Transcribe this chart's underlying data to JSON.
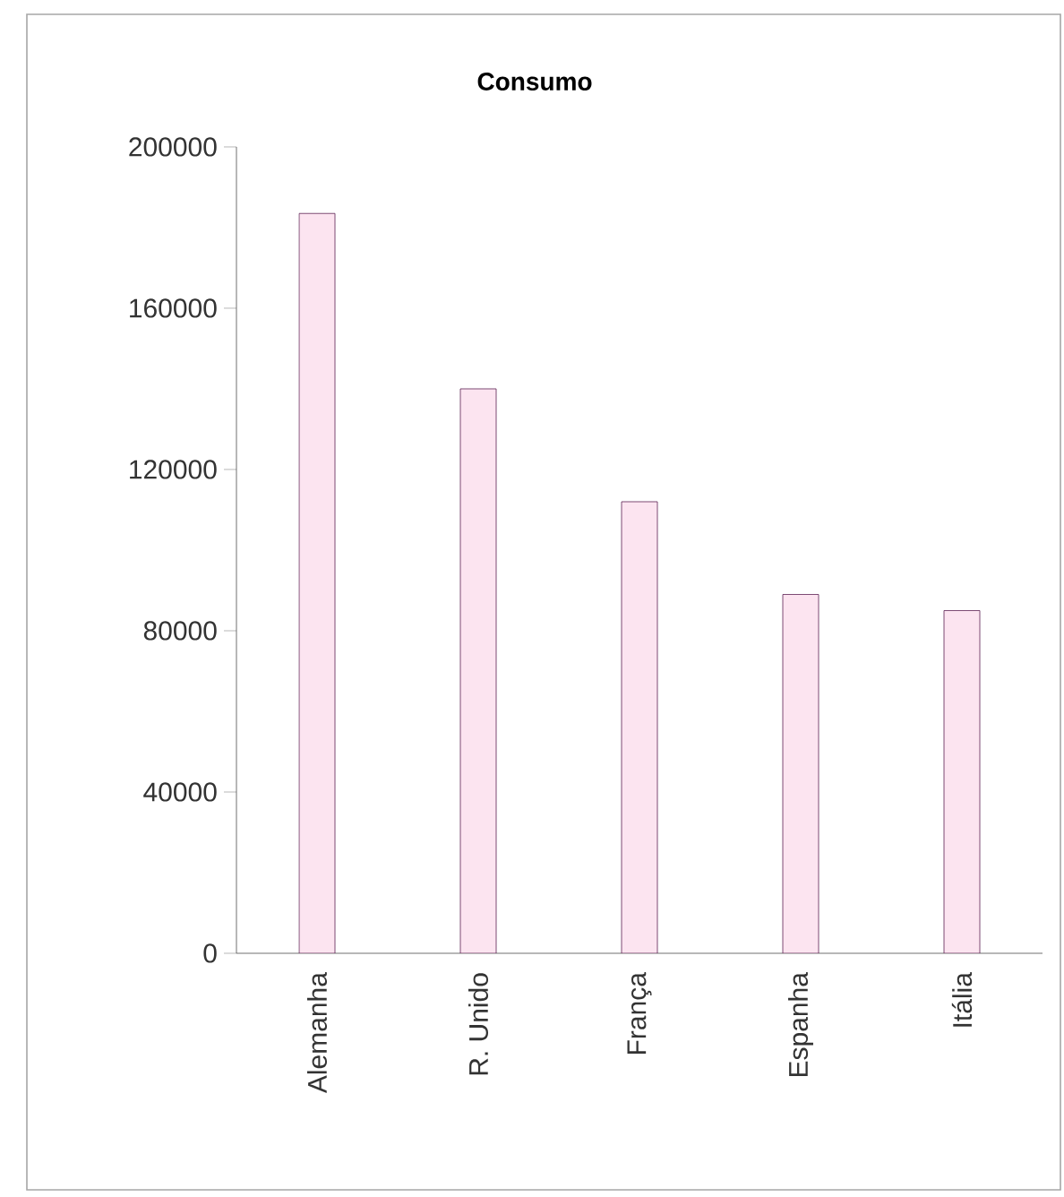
{
  "chart_data": {
    "type": "bar",
    "title": "Consumo",
    "categories": [
      "Alemanha",
      "R. Unido",
      "França",
      "Espanha",
      "Itália"
    ],
    "values": [
      183500,
      140000,
      112000,
      89000,
      85000
    ],
    "color": "#fce4f0",
    "ylim": [
      0,
      200000
    ],
    "yticks": [
      0,
      40000,
      80000,
      120000,
      160000,
      200000
    ]
  }
}
